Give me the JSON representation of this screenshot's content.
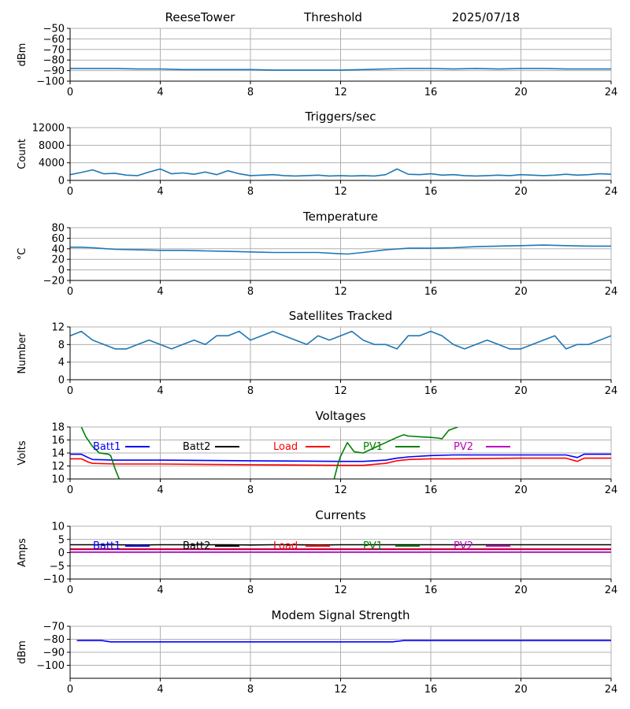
{
  "header": {
    "station": "ReeseTower",
    "metric": "Threshold",
    "date": "2025/07/18"
  },
  "chart_data": [
    {
      "id": "threshold",
      "type": "line",
      "title": "",
      "ylabel": "dBm",
      "ylim": [
        -100,
        -50
      ],
      "yticks": [
        -100,
        -90,
        -80,
        -70,
        -60,
        -50
      ],
      "xlim": [
        0,
        24
      ],
      "xticks": [
        0,
        4,
        8,
        12,
        16,
        20,
        24
      ],
      "grid": true,
      "series": [
        {
          "color": "#1f77b4",
          "x": [
            0,
            1,
            2,
            3,
            4,
            5,
            6,
            7,
            8,
            9,
            10,
            11,
            12,
            13,
            14,
            15,
            16,
            17,
            18,
            19,
            20,
            21,
            22,
            23,
            24
          ],
          "y": [
            -88,
            -88,
            -88,
            -88.5,
            -88.5,
            -89,
            -89,
            -89,
            -89,
            -89.5,
            -89.5,
            -89.5,
            -89.5,
            -89,
            -88.5,
            -88,
            -88,
            -88.5,
            -88,
            -88.5,
            -88,
            -88,
            -88.5,
            -88.5,
            -88.5
          ]
        }
      ]
    },
    {
      "id": "triggers",
      "type": "line",
      "title": "Triggers/sec",
      "ylabel": "Count",
      "ylim": [
        0,
        12000
      ],
      "yticks": [
        0,
        4000,
        8000,
        12000
      ],
      "xlim": [
        0,
        24
      ],
      "xticks": [
        0,
        4,
        8,
        12,
        16,
        20,
        24
      ],
      "grid": true,
      "series": [
        {
          "color": "#1f77b4",
          "x": [
            0,
            0.5,
            1,
            1.5,
            2,
            2.5,
            3,
            3.5,
            4,
            4.5,
            5,
            5.5,
            6,
            6.5,
            7,
            7.5,
            8,
            8.5,
            9,
            9.5,
            10,
            10.5,
            11,
            11.5,
            12,
            12.5,
            13,
            13.5,
            14,
            14.5,
            15,
            15.5,
            16,
            16.5,
            17,
            17.5,
            18,
            18.5,
            19,
            19.5,
            20,
            20.5,
            21,
            21.5,
            22,
            22.5,
            23,
            23.5,
            24
          ],
          "y": [
            1300,
            1800,
            2400,
            1500,
            1600,
            1200,
            1100,
            1900,
            2600,
            1500,
            1700,
            1400,
            1900,
            1300,
            2200,
            1500,
            1100,
            1200,
            1300,
            1100,
            1000,
            1100,
            1200,
            1000,
            1100,
            1000,
            1100,
            1000,
            1300,
            2600,
            1400,
            1300,
            1500,
            1200,
            1300,
            1100,
            1000,
            1100,
            1200,
            1100,
            1300,
            1200,
            1100,
            1200,
            1400,
            1200,
            1300,
            1500,
            1400
          ]
        }
      ]
    },
    {
      "id": "temperature",
      "type": "line",
      "title": "Temperature",
      "ylabel": "°C",
      "ylim": [
        -20,
        80
      ],
      "yticks": [
        -20,
        0,
        20,
        40,
        60,
        80
      ],
      "xlim": [
        0,
        24
      ],
      "xticks": [
        0,
        4,
        8,
        12,
        16,
        20,
        24
      ],
      "grid": true,
      "series": [
        {
          "color": "#1f77b4",
          "x": [
            0,
            0.5,
            1,
            2,
            3,
            4,
            5,
            6,
            7,
            8,
            9,
            10,
            11,
            11.8,
            12.3,
            13,
            14,
            15,
            16,
            17,
            18,
            19,
            20,
            21,
            22,
            23,
            24
          ],
          "y": [
            43,
            43,
            42,
            39,
            38,
            37,
            37,
            36,
            35,
            34,
            33,
            33,
            33,
            31,
            30,
            33,
            38,
            41,
            41,
            42,
            44,
            45,
            46,
            47,
            46,
            45,
            45
          ]
        }
      ]
    },
    {
      "id": "satellites",
      "type": "line",
      "title": "Satellites Tracked",
      "ylabel": "Number",
      "ylim": [
        0,
        12
      ],
      "yticks": [
        0,
        4,
        8,
        12
      ],
      "xlim": [
        0,
        24
      ],
      "xticks": [
        0,
        4,
        8,
        12,
        16,
        20,
        24
      ],
      "grid": true,
      "series": [
        {
          "color": "#1f77b4",
          "x": [
            0,
            0.5,
            1,
            1.5,
            2,
            2.5,
            3,
            3.5,
            4,
            4.5,
            5,
            5.5,
            6,
            6.5,
            7,
            7.5,
            8,
            8.5,
            9,
            9.5,
            10,
            10.5,
            11,
            11.5,
            12,
            12.5,
            13,
            13.5,
            14,
            14.5,
            15,
            15.5,
            16,
            16.5,
            17,
            17.5,
            18,
            18.5,
            19,
            19.5,
            20,
            20.5,
            21,
            21.5,
            22,
            22.5,
            23,
            23.5,
            24
          ],
          "y": [
            10,
            11,
            9,
            8,
            7,
            7,
            8,
            9,
            8,
            7,
            8,
            9,
            8,
            10,
            10,
            11,
            9,
            10,
            11,
            10,
            9,
            8,
            10,
            9,
            10,
            11,
            9,
            8,
            8,
            7,
            10,
            10,
            11,
            10,
            8,
            7,
            8,
            9,
            8,
            7,
            7,
            8,
            9,
            10,
            7,
            8,
            8,
            9,
            10
          ]
        }
      ]
    },
    {
      "id": "voltages",
      "type": "line",
      "title": "Voltages",
      "ylabel": "Volts",
      "ylim": [
        10,
        18
      ],
      "yticks": [
        10,
        12,
        14,
        16,
        18
      ],
      "xlim": [
        0,
        24
      ],
      "xticks": [
        0,
        4,
        8,
        12,
        16,
        20,
        24
      ],
      "grid": true,
      "series": [
        {
          "name": "Batt1",
          "color": "#0000ff",
          "x": [
            0,
            0.5,
            0.8,
            1,
            2,
            4,
            8,
            12,
            13,
            14,
            14.5,
            15,
            16,
            17,
            20,
            22,
            22.5,
            22.8,
            24
          ],
          "y": [
            13.8,
            13.8,
            13.3,
            13.0,
            12.9,
            12.9,
            12.8,
            12.7,
            12.7,
            12.9,
            13.2,
            13.4,
            13.6,
            13.7,
            13.7,
            13.7,
            13.3,
            13.8,
            13.8
          ]
        },
        {
          "name": "Batt2",
          "color": "#000000",
          "x": [],
          "y": []
        },
        {
          "name": "Load",
          "color": "#ff0000",
          "x": [
            0,
            0.5,
            0.8,
            1,
            2,
            4,
            8,
            12,
            13,
            14,
            14.5,
            15,
            16,
            17,
            20,
            22,
            22.5,
            22.8,
            24
          ],
          "y": [
            13.1,
            13.1,
            12.6,
            12.4,
            12.3,
            12.3,
            12.2,
            12.1,
            12.1,
            12.4,
            12.8,
            13.0,
            13.1,
            13.1,
            13.2,
            13.2,
            12.7,
            13.2,
            13.2
          ]
        },
        {
          "name": "PV1",
          "color": "#008000",
          "x": [
            0.5,
            0.7,
            1,
            1.3,
            1.7,
            1.8,
            2.0,
            2.2,
            11.7,
            11.9,
            12.0,
            12.3,
            12.6,
            13,
            13.5,
            14,
            14.5,
            14.8,
            15.0,
            15.5,
            16.0,
            16.3,
            16.5,
            16.8,
            17.2
          ],
          "y": [
            18.0,
            16.5,
            15.0,
            14.0,
            13.8,
            13.6,
            11.5,
            9.8,
            9.8,
            12.5,
            13.5,
            15.6,
            14.2,
            14.0,
            14.8,
            15.6,
            16.4,
            16.8,
            16.6,
            16.5,
            16.4,
            16.3,
            16.2,
            17.5,
            18.0
          ]
        },
        {
          "name": "PV2",
          "color": "#bf00bf",
          "x": [],
          "y": []
        }
      ]
    },
    {
      "id": "currents",
      "type": "line",
      "title": "Currents",
      "ylabel": "Amps",
      "ylim": [
        -10,
        10
      ],
      "yticks": [
        -10,
        -5,
        0,
        5,
        10
      ],
      "xlim": [
        0,
        24
      ],
      "xticks": [
        0,
        4,
        8,
        12,
        16,
        20,
        24
      ],
      "grid": true,
      "series": [
        {
          "name": "Batt1",
          "color": "#0000ff",
          "x": [
            0,
            24
          ],
          "y": [
            1.2,
            1.2
          ]
        },
        {
          "name": "Batt2",
          "color": "#000000",
          "x": [
            0,
            1,
            2,
            3,
            4,
            5,
            6,
            7,
            8,
            9,
            10,
            11,
            12,
            13,
            14,
            15,
            16,
            17,
            18,
            19,
            20,
            21,
            22,
            23,
            24
          ],
          "y": [
            3,
            3,
            3,
            2.9,
            3,
            3,
            3,
            3,
            2.9,
            3,
            3,
            2.9,
            3,
            3,
            3,
            3,
            3,
            3,
            3,
            3,
            3,
            3,
            3,
            3,
            3
          ]
        },
        {
          "name": "Load",
          "color": "#ff0000",
          "x": [
            0,
            24
          ],
          "y": [
            1.4,
            1.4
          ]
        },
        {
          "name": "PV1",
          "color": "#008000",
          "x": [],
          "y": []
        },
        {
          "name": "PV2",
          "color": "#bf00bf",
          "x": [
            0,
            24
          ],
          "y": [
            0.2,
            0.2
          ]
        }
      ]
    },
    {
      "id": "modem",
      "type": "line",
      "title": "Modem Signal Strength",
      "ylabel": "dBm",
      "ylim": [
        -110,
        -70
      ],
      "yticks": [
        -100,
        -90,
        -80,
        -70
      ],
      "xlim": [
        0,
        24
      ],
      "xticks": [
        0,
        4,
        8,
        12,
        16,
        20,
        24
      ],
      "grid": true,
      "series": [
        {
          "color": "#0000ff",
          "x": [
            0.3,
            1.4,
            1.8,
            14.3,
            14.8,
            24
          ],
          "y": [
            -81,
            -81,
            -82,
            -82,
            -81,
            -81
          ]
        }
      ]
    }
  ]
}
